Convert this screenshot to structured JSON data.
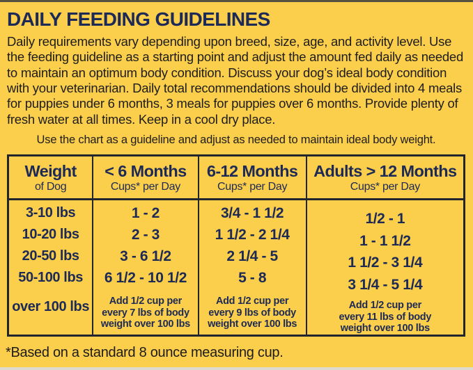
{
  "colors": {
    "background": "#FBCE4B",
    "navy_text": "#1D2A56",
    "body_text": "#1E1D1B",
    "table_border": "#23252C"
  },
  "header": {
    "title": "DAILY FEEDING GUIDELINES"
  },
  "intro": {
    "text": "Daily requirements vary depending upon breed, size, age, and activity level. Use the feeding guideline as a starting point and adjust the amount fed daily as needed to maintain an optimum body condition. Discuss your dog’s ideal body condition with your veterinarian. Daily total recommendations should be divided into 4 meals for puppies under 6 months, 3 meals for puppies over 6 months. Provide plenty of fresh water at all times. Keep in a cool dry place.",
    "chart_note": "Use the chart as a guideline and adjust as needed to maintain ideal body weight."
  },
  "table": {
    "columns": [
      {
        "title": "Weight",
        "subtitle": "of Dog"
      },
      {
        "title": "< 6 Months",
        "subtitle": "Cups* per Day"
      },
      {
        "title": "6-12 Months",
        "subtitle": "Cups* per Day"
      },
      {
        "title": "Adults > 12 Months",
        "subtitle": "Cups* per Day"
      }
    ],
    "weights": [
      "3-10 lbs",
      "10-20 lbs",
      "20-50 lbs",
      "50-100 lbs",
      "over 100 lbs"
    ],
    "under_6_months": {
      "values": [
        "1 - 2",
        "2 - 3",
        "3 - 6 1/2",
        "6 1/2 - 10 1/2"
      ],
      "note_lines": [
        "Add 1/2 cup per",
        "every 7 lbs of body",
        "weight over 100 lbs"
      ]
    },
    "months_6_to_12": {
      "values": [
        "3/4 - 1 1/2",
        "1 1/2 - 2 1/4",
        "2 1/4 - 5",
        "5 - 8"
      ],
      "note_lines": [
        "Add 1/2 cup per",
        "every 9 lbs of body",
        "weight over 100 lbs"
      ]
    },
    "adults": {
      "values": [
        "1/2 - 1",
        "1 - 1 1/2",
        "1 1/2 - 3 1/4",
        "3 1/4 - 5 1/4"
      ],
      "note_lines": [
        "Add 1/2 cup per",
        "every 11 lbs of body",
        "weight over 100 lbs"
      ]
    }
  },
  "footnote": "*Based on a standard 8 ounce measuring cup."
}
